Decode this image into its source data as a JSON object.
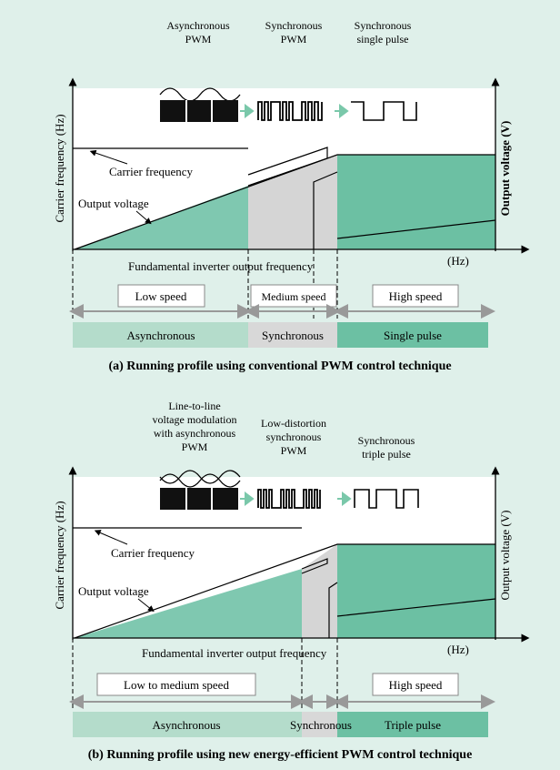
{
  "diagrams": [
    {
      "id": "a",
      "modes": [
        "Asynchronous\nPWM",
        "Synchronous\nPWM",
        "Synchronous\nsingle pulse"
      ],
      "y_left": "Carrier frequency (Hz)",
      "y_right": "Output voltage (V)",
      "carrier_label": "Carrier frequency",
      "voltage_label": "Output voltage",
      "x_label": "Fundamental inverter output frequency",
      "x_unit": "(Hz)",
      "speeds": [
        "Low speed",
        "Medium speed",
        "High speed"
      ],
      "bands": [
        "Asynchronous",
        "Synchronous",
        "Single pulse"
      ],
      "caption": "(a) Running profile using conventional PWM control technique"
    },
    {
      "id": "b",
      "modes": [
        "Line-to-line\nvoltage modulation\nwith asynchronous\nPWM",
        "Low-distortion\nsynchronous\nPWM",
        "Synchronous\ntriple pulse"
      ],
      "y_left": "Carrier frequency (Hz)",
      "y_right": "Output voltage (V)",
      "carrier_label": "Carrier frequency",
      "voltage_label": "Output voltage",
      "x_label": "Fundamental inverter output frequency",
      "x_unit": "(Hz)",
      "speeds": [
        "Low to medium speed",
        "High speed"
      ],
      "bands": [
        "Asynchronous",
        "Synchronous",
        "Triple pulse"
      ],
      "caption": "(b) Running profile using new energy-efficient PWM control technique"
    }
  ],
  "colors": {
    "background": "#dff0ea",
    "teal_fill": "#7fc8b0",
    "teal_dark": "#5cb89c",
    "gray_fill": "#d5d5d5",
    "band_light": "#b4dccb",
    "band_dark": "#6cc0a3",
    "band_gray": "#d8d8d8"
  }
}
